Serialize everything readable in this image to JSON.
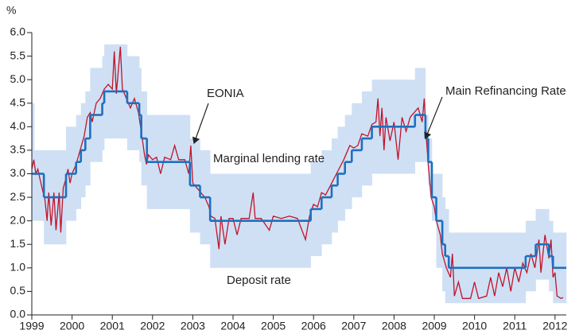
{
  "chart_data": {
    "type": "line",
    "y_unit": "%",
    "xlim": [
      1999,
      2012.28
    ],
    "ylim": [
      0,
      6
    ],
    "xticks": [
      1999,
      2000,
      2001,
      2002,
      2003,
      2004,
      2005,
      2006,
      2007,
      2008,
      2009,
      2010,
      2011,
      2012
    ],
    "yticks": [
      {
        "value": 0,
        "label": "0.0"
      },
      0.5,
      {
        "value": 1,
        "label": "1.0"
      },
      1.5,
      {
        "value": 2,
        "label": "2.0"
      },
      2.5,
      {
        "value": 3,
        "label": "3.0"
      },
      3.5,
      {
        "value": 4,
        "label": "4.0"
      },
      4.5,
      {
        "value": 5,
        "label": "5.0"
      },
      5.5,
      {
        "value": 6,
        "label": "6.0"
      }
    ],
    "band": {
      "color": "#cfe0f5",
      "x": [
        1999.0,
        1999.06,
        1999.3,
        1999.85,
        2000.1,
        2000.22,
        2000.33,
        2000.45,
        2000.75,
        2000.8,
        2001.37,
        2001.67,
        2001.72,
        2001.86,
        2002.93,
        2003.18,
        2003.43,
        2005.93,
        2006.2,
        2006.45,
        2006.6,
        2006.78,
        2006.95,
        2007.2,
        2007.45,
        2008.52,
        2008.78,
        2008.85,
        2008.94,
        2009.05,
        2009.2,
        2009.27,
        2009.36,
        2011.27,
        2011.52,
        2011.85,
        2011.95
      ],
      "upper": [
        4.5,
        3.5,
        3.5,
        4.0,
        4.25,
        4.5,
        4.75,
        5.25,
        5.5,
        5.75,
        5.5,
        5.25,
        4.75,
        4.25,
        3.75,
        3.5,
        3.0,
        3.25,
        3.5,
        3.75,
        4.0,
        4.25,
        4.5,
        4.75,
        5.0,
        5.25,
        4.25,
        3.75,
        3.0,
        3.0,
        2.5,
        2.25,
        1.75,
        2.0,
        2.25,
        2.0,
        1.75
      ],
      "lower": [
        2.0,
        2.0,
        1.5,
        2.0,
        2.25,
        2.5,
        2.75,
        3.25,
        3.5,
        3.75,
        3.5,
        3.25,
        2.75,
        2.25,
        1.75,
        1.5,
        1.0,
        1.25,
        1.5,
        1.75,
        2.0,
        2.25,
        2.5,
        2.75,
        3.0,
        3.25,
        3.25,
        2.75,
        2.0,
        1.0,
        0.5,
        0.25,
        0.25,
        0.5,
        0.75,
        0.5,
        0.25
      ]
    },
    "series": [
      {
        "kind": "step",
        "color": "#1f6fbf",
        "x": [
          1999.0,
          1999.3,
          1999.85,
          2000.1,
          2000.22,
          2000.33,
          2000.45,
          2000.75,
          2000.8,
          2001.37,
          2001.67,
          2001.72,
          2001.86,
          2002.93,
          2003.18,
          2003.43,
          2005.93,
          2006.2,
          2006.45,
          2006.6,
          2006.78,
          2006.95,
          2007.2,
          2007.45,
          2008.52,
          2008.78,
          2008.85,
          2008.94,
          2009.05,
          2009.2,
          2009.27,
          2009.36,
          2011.27,
          2011.52,
          2011.85,
          2011.95
        ],
        "values": [
          3.0,
          2.5,
          3.0,
          3.25,
          3.5,
          3.75,
          4.25,
          4.5,
          4.75,
          4.5,
          4.25,
          3.75,
          3.25,
          2.75,
          2.5,
          2.0,
          2.25,
          2.5,
          2.75,
          3.0,
          3.25,
          3.5,
          3.75,
          4.0,
          4.25,
          3.75,
          3.25,
          2.5,
          2.0,
          1.5,
          1.25,
          1.0,
          1.25,
          1.5,
          1.25,
          1.0
        ]
      },
      {
        "kind": "line",
        "color": "#c0142a",
        "x": [
          1999.0,
          1999.05,
          1999.1,
          1999.15,
          1999.2,
          1999.28,
          1999.32,
          1999.38,
          1999.42,
          1999.48,
          1999.55,
          1999.6,
          1999.68,
          1999.72,
          1999.78,
          1999.85,
          1999.9,
          1999.95,
          2000.0,
          2000.1,
          2000.2,
          2000.3,
          2000.38,
          2000.45,
          2000.5,
          2000.6,
          2000.7,
          2000.8,
          2000.9,
          2001.0,
          2001.05,
          2001.1,
          2001.2,
          2001.25,
          2001.35,
          2001.45,
          2001.55,
          2001.65,
          2001.72,
          2001.8,
          2001.85,
          2001.9,
          2002.0,
          2002.1,
          2002.2,
          2002.3,
          2002.45,
          2002.55,
          2002.65,
          2002.8,
          2002.9,
          2002.95,
          2003.0,
          2003.1,
          2003.2,
          2003.3,
          2003.4,
          2003.45,
          2003.55,
          2003.65,
          2003.7,
          2003.8,
          2003.9,
          2004.0,
          2004.1,
          2004.2,
          2004.4,
          2004.5,
          2004.55,
          2004.7,
          2004.9,
          2005.0,
          2005.2,
          2005.4,
          2005.6,
          2005.8,
          2005.9,
          2006.0,
          2006.1,
          2006.2,
          2006.3,
          2006.45,
          2006.6,
          2006.75,
          2006.9,
          2007.0,
          2007.1,
          2007.2,
          2007.35,
          2007.45,
          2007.55,
          2007.6,
          2007.65,
          2007.7,
          2007.75,
          2007.8,
          2007.9,
          2008.0,
          2008.1,
          2008.2,
          2008.3,
          2008.4,
          2008.5,
          2008.6,
          2008.7,
          2008.75,
          2008.8,
          2008.85,
          2008.92,
          2009.0,
          2009.05,
          2009.15,
          2009.2,
          2009.3,
          2009.4,
          2009.45,
          2009.5,
          2009.6,
          2009.7,
          2009.9,
          2010.0,
          2010.1,
          2010.3,
          2010.4,
          2010.5,
          2010.6,
          2010.7,
          2010.8,
          2010.9,
          2011.0,
          2011.1,
          2011.2,
          2011.3,
          2011.4,
          2011.5,
          2011.6,
          2011.65,
          2011.75,
          2011.85,
          2011.9,
          2011.95,
          2012.0,
          2012.05,
          2012.15,
          2012.2
        ],
        "values": [
          3.1,
          3.3,
          3.0,
          3.1,
          2.9,
          2.6,
          2.5,
          2.0,
          2.6,
          1.9,
          2.6,
          1.8,
          2.6,
          1.75,
          2.7,
          2.9,
          3.1,
          2.8,
          3.0,
          3.2,
          3.5,
          3.8,
          4.2,
          4.3,
          4.1,
          4.5,
          4.6,
          4.8,
          4.9,
          4.8,
          5.6,
          4.7,
          5.7,
          4.8,
          4.6,
          4.4,
          4.6,
          4.3,
          3.9,
          3.4,
          3.2,
          3.4,
          3.3,
          3.35,
          3.0,
          3.35,
          3.3,
          3.6,
          3.3,
          3.3,
          3.0,
          3.6,
          2.8,
          2.7,
          2.6,
          2.5,
          2.3,
          2.1,
          2.05,
          1.4,
          2.1,
          1.5,
          2.05,
          2.05,
          1.7,
          2.05,
          2.05,
          2.6,
          2.05,
          2.05,
          1.8,
          2.1,
          2.05,
          2.1,
          2.05,
          1.6,
          2.1,
          2.35,
          2.3,
          2.6,
          2.55,
          2.8,
          3.05,
          3.3,
          3.6,
          3.55,
          3.6,
          3.85,
          3.8,
          4.05,
          4.1,
          4.6,
          3.8,
          4.4,
          3.5,
          4.2,
          3.7,
          4.1,
          3.3,
          4.2,
          3.9,
          4.2,
          4.3,
          4.4,
          4.1,
          4.6,
          3.8,
          3.2,
          2.5,
          2.3,
          2.0,
          1.7,
          1.3,
          1.0,
          0.8,
          1.3,
          0.4,
          0.7,
          0.35,
          0.35,
          0.7,
          0.35,
          0.4,
          0.8,
          0.4,
          0.9,
          0.6,
          1.0,
          0.5,
          1.0,
          0.7,
          1.1,
          0.9,
          1.3,
          1.0,
          1.6,
          0.9,
          1.7,
          1.2,
          1.6,
          0.8,
          0.9,
          0.4,
          0.35,
          0.37
        ]
      }
    ],
    "annotations": [
      "EONIA",
      "Main Refinancing Rate",
      "Marginal lending rate",
      "Deposit rate"
    ]
  }
}
